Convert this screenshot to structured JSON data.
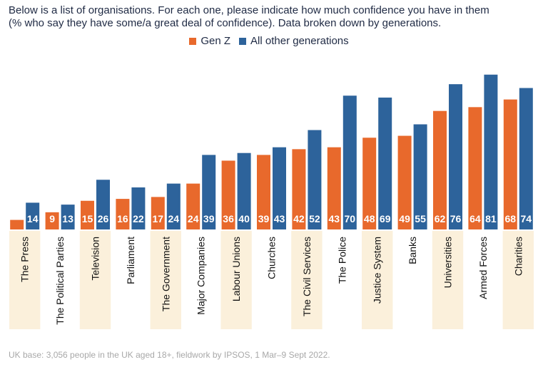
{
  "header": {
    "title_line1": "Below is a list of organisations. For each one, please indicate how much confidence you have in them",
    "title_line2": "(% who say they have some/a great deal of confidence). Data broken down by generations."
  },
  "legend": [
    {
      "label": "Gen Z",
      "color": "#e8692c"
    },
    {
      "label": "All other generations",
      "color": "#2d639b"
    }
  ],
  "footnote": "UK base: 3,056 people in the UK aged 18+, fieldwork by IPSOS,  1 Mar–9 Sept 2022.",
  "chart_data": {
    "type": "bar",
    "categories": [
      "The Press",
      "The Political Parties",
      "Television",
      "Parliament",
      "The Government",
      "Major Companies",
      "Labour Unions",
      "Churches",
      "The Civil Services",
      "The Police",
      "Justice System",
      "Banks",
      "Universities",
      "Armed Forces",
      "Charities"
    ],
    "series": [
      {
        "name": "Gen Z",
        "color": "#e8692c",
        "values": [
          5,
          9,
          15,
          16,
          17,
          24,
          36,
          39,
          42,
          43,
          48,
          49,
          62,
          64,
          68
        ]
      },
      {
        "name": "All other generations",
        "color": "#2d639b",
        "values": [
          14,
          13,
          26,
          22,
          24,
          39,
          40,
          43,
          52,
          70,
          69,
          55,
          76,
          81,
          74
        ]
      }
    ],
    "data_labels": [
      "",
      "9",
      "15",
      "16",
      "17",
      "24",
      "36",
      "39",
      "42",
      "43",
      "48",
      "49",
      "62",
      "64",
      "68"
    ],
    "ylim": [
      0,
      85
    ],
    "grid": false,
    "legend_position": "top-center",
    "highlight_color": "#fbf0db"
  }
}
